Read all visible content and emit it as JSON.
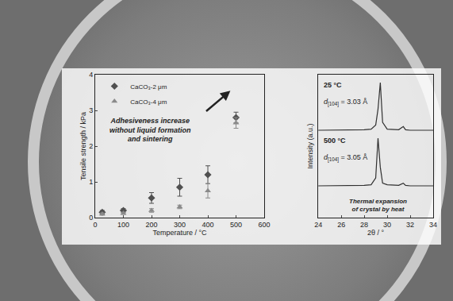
{
  "chart_data": [
    {
      "type": "scatter",
      "x_label": "Temperature / °C",
      "y_label": "Tensile strength / kPa",
      "xlim": [
        0,
        600
      ],
      "xticks": [
        0,
        100,
        200,
        300,
        400,
        500,
        600
      ],
      "ylim": [
        0,
        4
      ],
      "yticks": [
        0,
        1,
        2,
        3,
        4
      ],
      "grid": false,
      "legend": "upper left",
      "series": [
        {
          "name": "CaCO₃-2 μm",
          "color": "#505050",
          "marker": "diamond",
          "x": [
            25,
            100,
            200,
            300,
            400,
            500
          ],
          "values": [
            0.15,
            0.2,
            0.55,
            0.85,
            1.2,
            2.8
          ],
          "errors": [
            0.05,
            0.05,
            0.15,
            0.25,
            0.25,
            0.15
          ]
        },
        {
          "name": "CaCO₃-4 μm",
          "color": "#8a8a8a",
          "marker": "triangle-up",
          "x": [
            25,
            100,
            200,
            300,
            400,
            500
          ],
          "values": [
            0.1,
            0.12,
            0.2,
            0.3,
            0.75,
            2.65
          ],
          "errors": [
            0.03,
            0.03,
            0.05,
            0.05,
            0.2,
            0.15
          ]
        }
      ],
      "note_lines": [
        "Adhesiveness increase",
        "without liquid formation",
        "and sintering"
      ]
    },
    {
      "type": "line",
      "x_label": "2θ / °",
      "y_label": "Intensity (a.u.)",
      "xlim": [
        24,
        34
      ],
      "xticks": [
        24,
        26,
        28,
        30,
        32,
        34
      ],
      "ylim": [
        -0.5,
        2.2
      ],
      "yticks": [],
      "tick_labels": "x",
      "grid": false,
      "x": [
        24,
        25,
        26,
        27,
        28,
        28.6,
        29.0,
        29.2,
        29.4,
        29.6,
        30.0,
        31.0,
        31.4,
        31.6,
        32,
        33,
        34
      ],
      "series": [
        {
          "name": "25 °C",
          "color": "#303030",
          "d_label": {
            "symbol": "d",
            "subscript": "[104]",
            "text": "= 3.03 Å"
          },
          "values": [
            1.15,
            1.15,
            1.16,
            1.15,
            1.16,
            1.17,
            1.25,
            1.55,
            2.05,
            1.3,
            1.17,
            1.16,
            1.22,
            1.16,
            1.15,
            1.15,
            1.15
          ]
        },
        {
          "name": "500 °C",
          "color": "#303030",
          "d_label": {
            "symbol": "d",
            "subscript": "[104]",
            "text": "= 3.05 Å"
          },
          "values": [
            0.1,
            0.1,
            0.11,
            0.1,
            0.11,
            0.12,
            0.25,
            1.0,
            0.45,
            0.15,
            0.12,
            0.11,
            0.15,
            0.11,
            0.1,
            0.1,
            0.1
          ]
        }
      ],
      "note_lines": [
        "Thermal expansion",
        "of crystal by heat"
      ]
    }
  ]
}
